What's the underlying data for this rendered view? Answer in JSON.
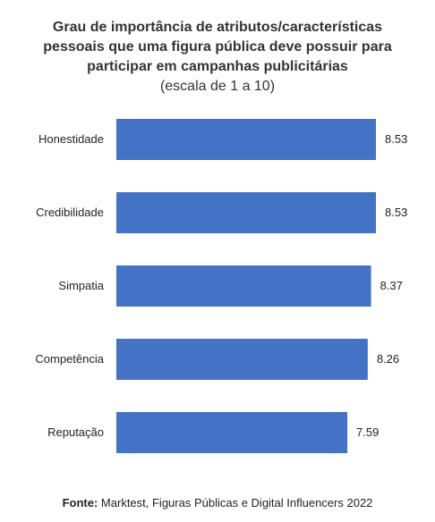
{
  "chart_data": {
    "type": "bar",
    "orientation": "horizontal",
    "title_lines": [
      "Grau de importância de atributos/características",
      "pessoais que uma figura pública deve possuir para",
      "participar em campanhas publicitárias"
    ],
    "subtitle": "(escala de 1 a 10)",
    "categories": [
      "Honestidade",
      "Credibilidade",
      "Simpatia",
      "Competência",
      "Reputação"
    ],
    "values": [
      8.53,
      8.53,
      8.37,
      8.26,
      7.59
    ],
    "data_labels": [
      "8.53",
      "8.53",
      "8.37",
      "8.26",
      "7.59"
    ],
    "xlim": [
      0,
      9
    ],
    "grid": false,
    "legend": "none",
    "bar_color": "#4472C4"
  },
  "source": {
    "label": "Fonte:",
    "text": " Marktest, Figuras Públicas e Digital Influencers 2022"
  }
}
